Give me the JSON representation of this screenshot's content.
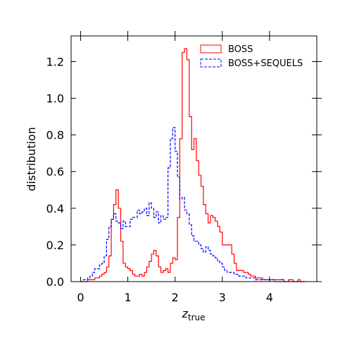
{
  "chart_data": {
    "type": "line",
    "style": "step-histogram",
    "xlabel_main": "z",
    "xlabel_sub": "true",
    "ylabel": "distribution",
    "xlim": [
      -0.2,
      5.0
    ],
    "ylim": [
      0,
      1.34
    ],
    "x_ticks": [
      0,
      1,
      2,
      3,
      4
    ],
    "y_ticks": [
      0.0,
      0.2,
      0.4,
      0.6,
      0.8,
      1.0,
      1.2
    ],
    "y_tick_labels": [
      "0.0",
      "0.2",
      "0.4",
      "0.6",
      "0.8",
      "1.0",
      "1.2"
    ],
    "grid": false,
    "ticks_direction": "in",
    "mirror_ticks": true,
    "legend_position": "top-right",
    "series": [
      {
        "name": "BOSS",
        "color": "#ff0000",
        "dash": "solid",
        "bin_edges": [
          0.0,
          0.05,
          0.1,
          0.15,
          0.2,
          0.25,
          0.3,
          0.35,
          0.4,
          0.45,
          0.5,
          0.55,
          0.6,
          0.65,
          0.7,
          0.75,
          0.8,
          0.85,
          0.9,
          0.95,
          1.0,
          1.05,
          1.1,
          1.15,
          1.2,
          1.25,
          1.3,
          1.35,
          1.4,
          1.45,
          1.5,
          1.55,
          1.6,
          1.65,
          1.7,
          1.75,
          1.8,
          1.85,
          1.9,
          1.95,
          2.0,
          2.05,
          2.1,
          2.15,
          2.2,
          2.25,
          2.3,
          2.35,
          2.4,
          2.45,
          2.5,
          2.55,
          2.6,
          2.65,
          2.7,
          2.75,
          2.8,
          2.85,
          2.9,
          2.95,
          3.0,
          3.05,
          3.1,
          3.15,
          3.2,
          3.25,
          3.3,
          3.35,
          3.4,
          3.45,
          3.5,
          3.55,
          3.6,
          3.65,
          3.7,
          3.75,
          3.8,
          3.85,
          3.9,
          3.95,
          4.0,
          4.05,
          4.1,
          4.15,
          4.2,
          4.25,
          4.3,
          4.35,
          4.4,
          4.45,
          4.5,
          4.55,
          4.6,
          4.65,
          4.7,
          4.75
        ],
        "values": [
          0.0,
          0.0,
          0.0,
          0.01,
          0.01,
          0.01,
          0.02,
          0.02,
          0.03,
          0.04,
          0.05,
          0.08,
          0.14,
          0.34,
          0.42,
          0.5,
          0.4,
          0.22,
          0.1,
          0.08,
          0.07,
          0.06,
          0.04,
          0.03,
          0.03,
          0.04,
          0.03,
          0.05,
          0.08,
          0.11,
          0.15,
          0.17,
          0.14,
          0.08,
          0.05,
          0.06,
          0.07,
          0.05,
          0.1,
          0.13,
          0.12,
          0.35,
          0.78,
          1.25,
          1.27,
          1.21,
          0.9,
          0.72,
          0.78,
          0.66,
          0.58,
          0.52,
          0.42,
          0.37,
          0.32,
          0.36,
          0.35,
          0.33,
          0.3,
          0.27,
          0.2,
          0.2,
          0.2,
          0.2,
          0.15,
          0.1,
          0.06,
          0.06,
          0.06,
          0.05,
          0.05,
          0.04,
          0.03,
          0.03,
          0.02,
          0.02,
          0.02,
          0.01,
          0.01,
          0.01,
          0.01,
          0.01,
          0.01,
          0.01,
          0.01,
          0.01,
          0.0,
          0.0,
          0.01,
          0.01,
          0.0,
          0.0,
          0.01,
          0.0,
          0.0
        ]
      },
      {
        "name": "BOSS+SEQUELS",
        "color": "#0000ff",
        "dash": "dashed",
        "bin_edges": [
          0.0,
          0.05,
          0.1,
          0.15,
          0.2,
          0.25,
          0.3,
          0.35,
          0.4,
          0.45,
          0.5,
          0.55,
          0.6,
          0.65,
          0.7,
          0.75,
          0.8,
          0.85,
          0.9,
          0.95,
          1.0,
          1.05,
          1.1,
          1.15,
          1.2,
          1.25,
          1.3,
          1.35,
          1.4,
          1.45,
          1.5,
          1.55,
          1.6,
          1.65,
          1.7,
          1.75,
          1.8,
          1.85,
          1.9,
          1.95,
          2.0,
          2.05,
          2.1,
          2.15,
          2.2,
          2.25,
          2.3,
          2.35,
          2.4,
          2.45,
          2.5,
          2.55,
          2.6,
          2.65,
          2.7,
          2.75,
          2.8,
          2.85,
          2.9,
          2.95,
          3.0,
          3.05,
          3.1,
          3.15,
          3.2,
          3.25,
          3.3,
          3.35,
          3.4,
          3.45,
          3.5,
          3.55,
          3.6,
          3.65,
          3.7,
          3.75,
          3.8,
          3.85,
          3.9,
          3.95,
          4.0,
          4.05,
          4.1,
          4.15,
          4.2,
          4.25,
          4.3,
          4.35,
          4.4,
          4.45,
          4.5,
          4.55,
          4.6,
          4.65,
          4.7,
          4.75
        ],
        "values": [
          0.0,
          0.01,
          0.01,
          0.02,
          0.03,
          0.05,
          0.07,
          0.07,
          0.09,
          0.1,
          0.14,
          0.23,
          0.3,
          0.34,
          0.37,
          0.33,
          0.32,
          0.29,
          0.33,
          0.3,
          0.3,
          0.34,
          0.35,
          0.35,
          0.39,
          0.37,
          0.38,
          0.4,
          0.36,
          0.43,
          0.4,
          0.35,
          0.38,
          0.32,
          0.36,
          0.34,
          0.35,
          0.62,
          0.78,
          0.84,
          0.71,
          0.57,
          0.45,
          0.46,
          0.39,
          0.37,
          0.31,
          0.25,
          0.22,
          0.22,
          0.2,
          0.18,
          0.16,
          0.19,
          0.17,
          0.15,
          0.14,
          0.13,
          0.11,
          0.1,
          0.08,
          0.06,
          0.05,
          0.05,
          0.05,
          0.04,
          0.04,
          0.03,
          0.03,
          0.03,
          0.02,
          0.02,
          0.02,
          0.02,
          0.01,
          0.01,
          0.01,
          0.01,
          0.01,
          0.01,
          0.01,
          0.01,
          0.0,
          0.0,
          0.0,
          0.01,
          0.0,
          0.0,
          0.0,
          0.0,
          0.0,
          0.0,
          0.0,
          0.0,
          0.0
        ]
      }
    ]
  }
}
